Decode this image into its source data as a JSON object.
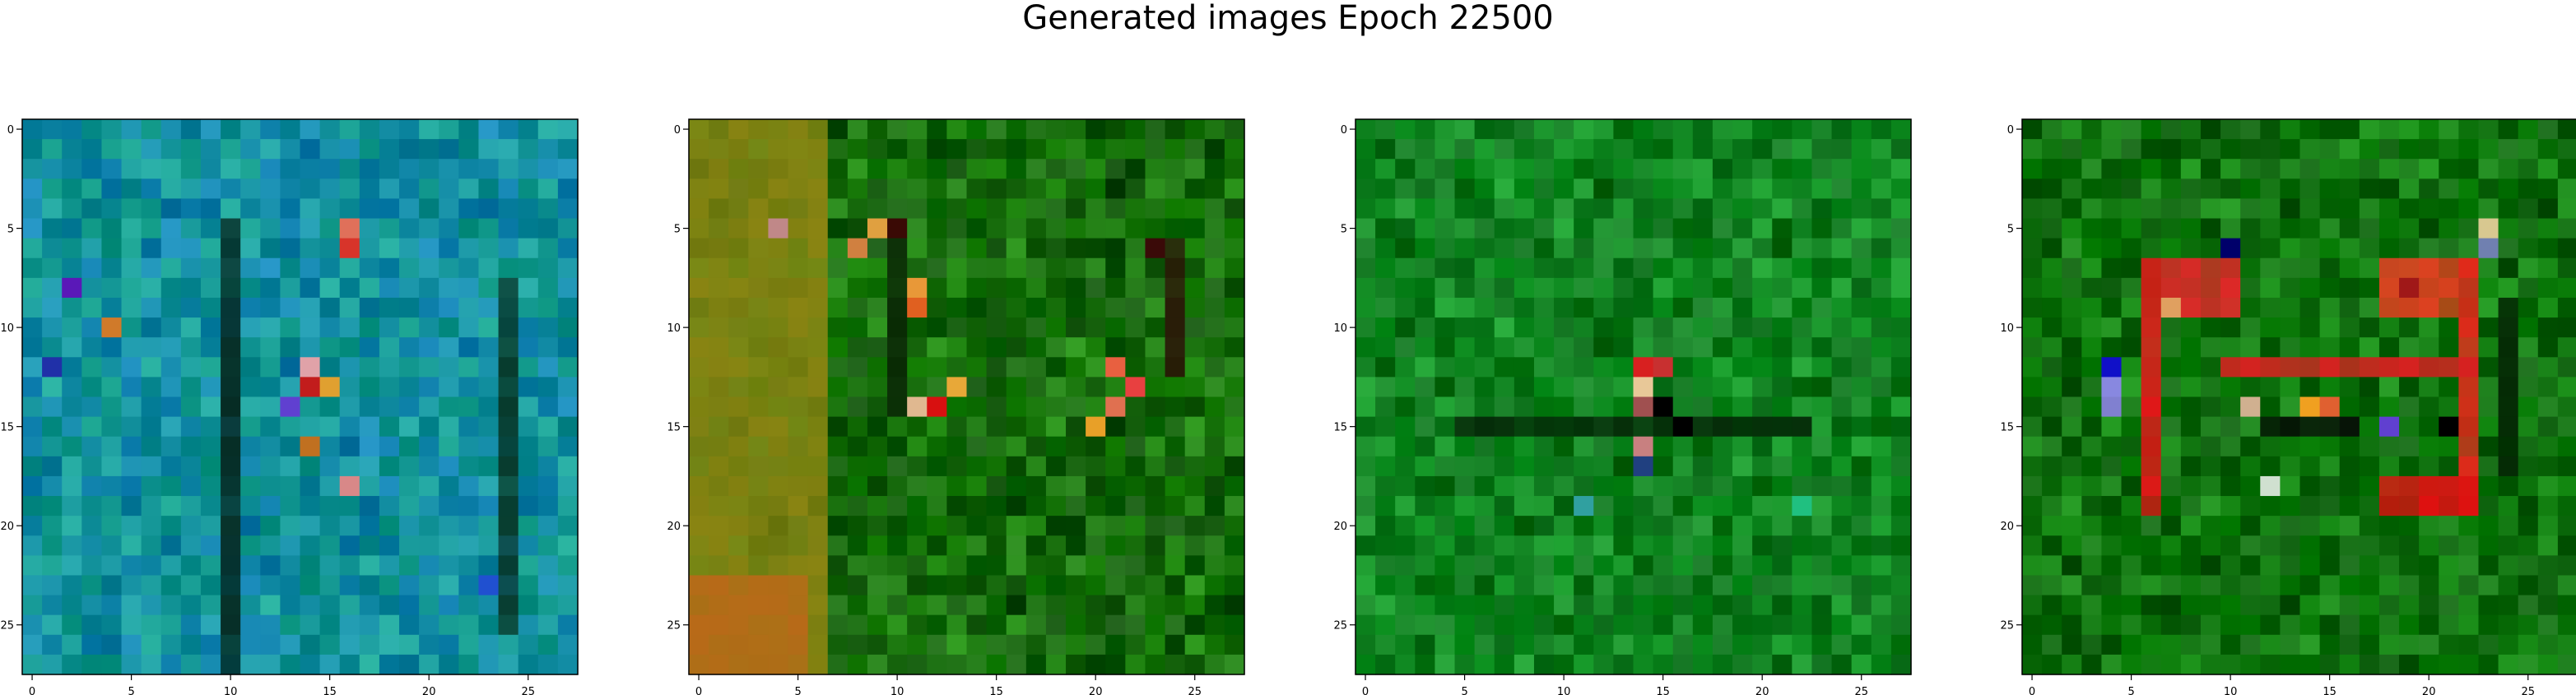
{
  "figure": {
    "title": "Generated images Epoch 22500"
  },
  "chart_data": [
    {
      "type": "heatmap",
      "panel": 1,
      "grid": false,
      "x_ticks": [
        "0",
        "5",
        "10",
        "15",
        "20",
        "25"
      ],
      "y_ticks": [
        "0",
        "5",
        "10",
        "15",
        "20",
        "25"
      ],
      "xlim": [
        -0.5,
        27.5
      ],
      "ylim": [
        27.5,
        -0.5
      ],
      "size": [
        28,
        28
      ],
      "palette": "teal-blue noise",
      "base_color": "#16a08c",
      "spread_color": "#0f7fb0",
      "features": [
        {
          "label": "dark vertical stroke",
          "cells": "x=10, y=5..27",
          "color": "#062c24"
        },
        {
          "label": "dark vertical stroke",
          "cells": "x=24, y=8..25",
          "color": "#073a2c"
        }
      ],
      "accents": [
        {
          "x": 16,
          "y": 6,
          "color": "#d8342a"
        },
        {
          "x": 16,
          "y": 5,
          "color": "#e0705a"
        },
        {
          "x": 4,
          "y": 10,
          "color": "#d07a2a"
        },
        {
          "x": 14,
          "y": 12,
          "color": "#e0a2a8"
        },
        {
          "x": 14,
          "y": 13,
          "color": "#c21c1c"
        },
        {
          "x": 15,
          "y": 13,
          "color": "#e0a030"
        },
        {
          "x": 13,
          "y": 14,
          "color": "#6040d0"
        },
        {
          "x": 14,
          "y": 16,
          "color": "#c07020"
        },
        {
          "x": 16,
          "y": 18,
          "color": "#d88888"
        },
        {
          "x": 2,
          "y": 8,
          "color": "#5a18b8"
        },
        {
          "x": 1,
          "y": 12,
          "color": "#2030a8"
        },
        {
          "x": 23,
          "y": 23,
          "color": "#2050d0"
        }
      ]
    },
    {
      "type": "heatmap",
      "panel": 2,
      "grid": false,
      "x_ticks": [
        "0",
        "5",
        "10",
        "15",
        "20",
        "25"
      ],
      "y_ticks": [
        "0",
        "5",
        "10",
        "15",
        "20",
        "25"
      ],
      "xlim": [
        -0.5,
        27.5
      ],
      "ylim": [
        27.5,
        -0.5
      ],
      "size": [
        28,
        28
      ],
      "palette": "green noise with olive-orange left side",
      "base_color": "#1f8a0e",
      "spread_color": "#0b4a06",
      "features": [
        {
          "label": "olive region",
          "cells": "x=0..6, y=0..27",
          "color": "#8a8412"
        },
        {
          "label": "orange lower-left",
          "cells": "x=0..5, y=23..27",
          "color": "#b86a18"
        },
        {
          "label": "dark vertical stroke",
          "cells": "x=10, y=5..14",
          "color": "#0a2a05"
        },
        {
          "label": "dark vertical stroke",
          "cells": "x=24, y=6..12",
          "color": "#2a1a08"
        }
      ],
      "accents": [
        {
          "x": 9,
          "y": 5,
          "color": "#e0a040"
        },
        {
          "x": 10,
          "y": 5,
          "color": "#3a0a05"
        },
        {
          "x": 8,
          "y": 6,
          "color": "#d08040"
        },
        {
          "x": 11,
          "y": 8,
          "color": "#e89838"
        },
        {
          "x": 11,
          "y": 9,
          "color": "#e06020"
        },
        {
          "x": 11,
          "y": 14,
          "color": "#e0b890"
        },
        {
          "x": 12,
          "y": 14,
          "color": "#d81010"
        },
        {
          "x": 13,
          "y": 13,
          "color": "#e8a838"
        },
        {
          "x": 21,
          "y": 12,
          "color": "#e86040"
        },
        {
          "x": 22,
          "y": 13,
          "color": "#e84040"
        },
        {
          "x": 21,
          "y": 14,
          "color": "#e07050"
        },
        {
          "x": 20,
          "y": 15,
          "color": "#e8a028"
        },
        {
          "x": 4,
          "y": 5,
          "color": "#c08888"
        },
        {
          "x": 23,
          "y": 6,
          "color": "#3a0a08"
        }
      ]
    },
    {
      "type": "heatmap",
      "panel": 3,
      "grid": false,
      "x_ticks": [
        "0",
        "5",
        "10",
        "15",
        "20",
        "25"
      ],
      "y_ticks": [
        "0",
        "5",
        "10",
        "15",
        "20",
        "25"
      ],
      "xlim": [
        -0.5,
        27.5
      ],
      "ylim": [
        27.5,
        -0.5
      ],
      "size": [
        28,
        28
      ],
      "palette": "green noise",
      "base_color": "#159a28",
      "spread_color": "#0a6a18",
      "features": [
        {
          "label": "dark horizontal band",
          "cells": "x=5..22, y=15",
          "color": "#052a08"
        }
      ],
      "accents": [
        {
          "x": 14,
          "y": 12,
          "color": "#d82020"
        },
        {
          "x": 15,
          "y": 12,
          "color": "#c83030"
        },
        {
          "x": 14,
          "y": 13,
          "color": "#e8c898"
        },
        {
          "x": 14,
          "y": 14,
          "color": "#a05050"
        },
        {
          "x": 14,
          "y": 16,
          "color": "#c88080"
        },
        {
          "x": 15,
          "y": 14,
          "color": "#000000"
        },
        {
          "x": 16,
          "y": 15,
          "color": "#000000"
        },
        {
          "x": 22,
          "y": 19,
          "color": "#20c080"
        },
        {
          "x": 11,
          "y": 19,
          "color": "#30a0a0"
        },
        {
          "x": 14,
          "y": 17,
          "color": "#204080"
        }
      ]
    },
    {
      "type": "heatmap",
      "panel": 4,
      "grid": false,
      "x_ticks": [
        "0",
        "5",
        "10",
        "15",
        "20",
        "25"
      ],
      "y_ticks": [
        "0",
        "5",
        "10",
        "15",
        "20",
        "25"
      ],
      "xlim": [
        -0.5,
        27.5
      ],
      "ylim": [
        27.5,
        -0.5
      ],
      "size": [
        28,
        28
      ],
      "palette": "green noise with red glyph strokes",
      "base_color": "#128a10",
      "spread_color": "#0a5a0a",
      "features": [
        {
          "label": "red vertical stroke",
          "cells": "x=6, y=7..19",
          "color": "#e01818"
        },
        {
          "label": "red vertical stroke",
          "cells": "x=22, y=7..19",
          "color": "#e02a1a"
        },
        {
          "label": "red horizontal stroke",
          "cells": "x=10..22, y=12",
          "color": "#d82020"
        },
        {
          "label": "red upper block",
          "cells": "x=7..10, y=7..9",
          "color": "#e02828"
        },
        {
          "label": "red upper right block",
          "cells": "x=18..21, y=7..9",
          "color": "#e04020"
        },
        {
          "label": "red lower right block",
          "cells": "x=18..22, y=18..19",
          "color": "#e01010"
        },
        {
          "label": "dark horizontal band",
          "cells": "x=12..16, y=15",
          "color": "#050a05"
        },
        {
          "label": "dark vertical stroke",
          "cells": "x=24, y=9..17",
          "color": "#052a05"
        }
      ],
      "accents": [
        {
          "x": 10,
          "y": 6,
          "color": "#00006a"
        },
        {
          "x": 23,
          "y": 5,
          "color": "#d8c890"
        },
        {
          "x": 23,
          "y": 6,
          "color": "#7080b0"
        },
        {
          "x": 4,
          "y": 12,
          "color": "#1010c8"
        },
        {
          "x": 4,
          "y": 13,
          "color": "#8888e0"
        },
        {
          "x": 4,
          "y": 14,
          "color": "#8080d0"
        },
        {
          "x": 14,
          "y": 14,
          "color": "#f0a020"
        },
        {
          "x": 15,
          "y": 14,
          "color": "#e06030"
        },
        {
          "x": 18,
          "y": 15,
          "color": "#6040d0"
        },
        {
          "x": 7,
          "y": 9,
          "color": "#e0a060"
        },
        {
          "x": 19,
          "y": 8,
          "color": "#a01818"
        },
        {
          "x": 21,
          "y": 15,
          "color": "#000000"
        },
        {
          "x": 11,
          "y": 14,
          "color": "#d0b090"
        },
        {
          "x": 12,
          "y": 18,
          "color": "#d0e0d0"
        }
      ]
    }
  ]
}
